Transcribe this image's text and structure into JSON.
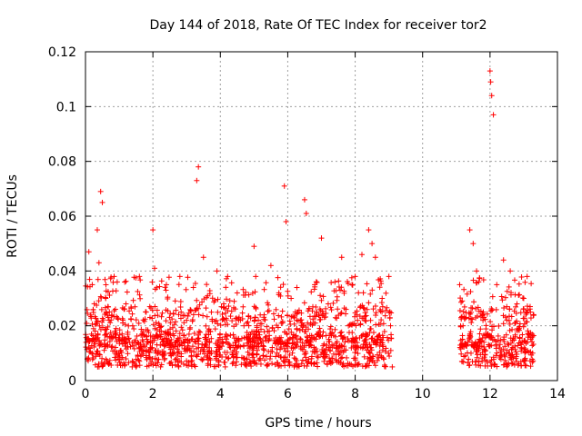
{
  "chart_data": {
    "type": "scatter",
    "title": "Day 144 of 2018, Rate Of TEC Index for receiver tor2",
    "xlabel": "GPS time / hours",
    "ylabel": "ROTI / TECUs",
    "xlim": [
      0,
      14
    ],
    "ylim": [
      0,
      0.12
    ],
    "x_ticks": [
      "0",
      "2",
      "4",
      "6",
      "8",
      "10",
      "12",
      "14"
    ],
    "y_ticks": [
      "0",
      "0.02",
      "0.04",
      "0.06",
      "0.08",
      "0.1",
      "0.12"
    ],
    "grid": true,
    "marker": "+",
    "color": "#ff0000",
    "series": [
      {
        "name": "ROTI",
        "x": [
          0.1,
          0.2,
          0.35,
          0.4,
          0.45,
          0.5,
          0.6,
          0.7,
          0.85,
          1.0,
          1.2,
          1.4,
          1.6,
          1.8,
          2.0,
          2.05,
          2.2,
          2.4,
          2.6,
          2.8,
          3.0,
          3.2,
          3.3,
          3.35,
          3.5,
          3.7,
          3.9,
          4.1,
          4.3,
          4.5,
          4.7,
          5.0,
          5.05,
          5.3,
          5.5,
          5.7,
          5.9,
          5.95,
          6.1,
          6.3,
          6.5,
          6.55,
          6.8,
          7.0,
          7.2,
          7.4,
          7.6,
          7.8,
          8.0,
          8.2,
          8.4,
          8.5,
          8.6,
          8.8,
          9.0,
          9.05,
          9.1,
          11.1,
          11.2,
          11.4,
          11.5,
          11.6,
          11.8,
          12.0,
          12.02,
          12.05,
          12.1,
          12.2,
          12.4,
          12.5,
          12.6,
          12.8,
          13.0,
          13.2
        ],
        "y": [
          0.047,
          0.035,
          0.055,
          0.043,
          0.069,
          0.065,
          0.03,
          0.022,
          0.038,
          0.015,
          0.028,
          0.02,
          0.038,
          0.025,
          0.055,
          0.041,
          0.018,
          0.035,
          0.012,
          0.038,
          0.022,
          0.034,
          0.073,
          0.078,
          0.045,
          0.018,
          0.04,
          0.028,
          0.012,
          0.032,
          0.02,
          0.049,
          0.038,
          0.024,
          0.042,
          0.015,
          0.071,
          0.058,
          0.03,
          0.025,
          0.066,
          0.061,
          0.035,
          0.052,
          0.028,
          0.036,
          0.045,
          0.02,
          0.038,
          0.046,
          0.055,
          0.05,
          0.045,
          0.03,
          0.038,
          0.02,
          0.005,
          0.035,
          0.02,
          0.055,
          0.05,
          0.04,
          0.025,
          0.113,
          0.109,
          0.104,
          0.097,
          0.035,
          0.044,
          0.022,
          0.04,
          0.028,
          0.03,
          0.025
        ]
      }
    ]
  }
}
